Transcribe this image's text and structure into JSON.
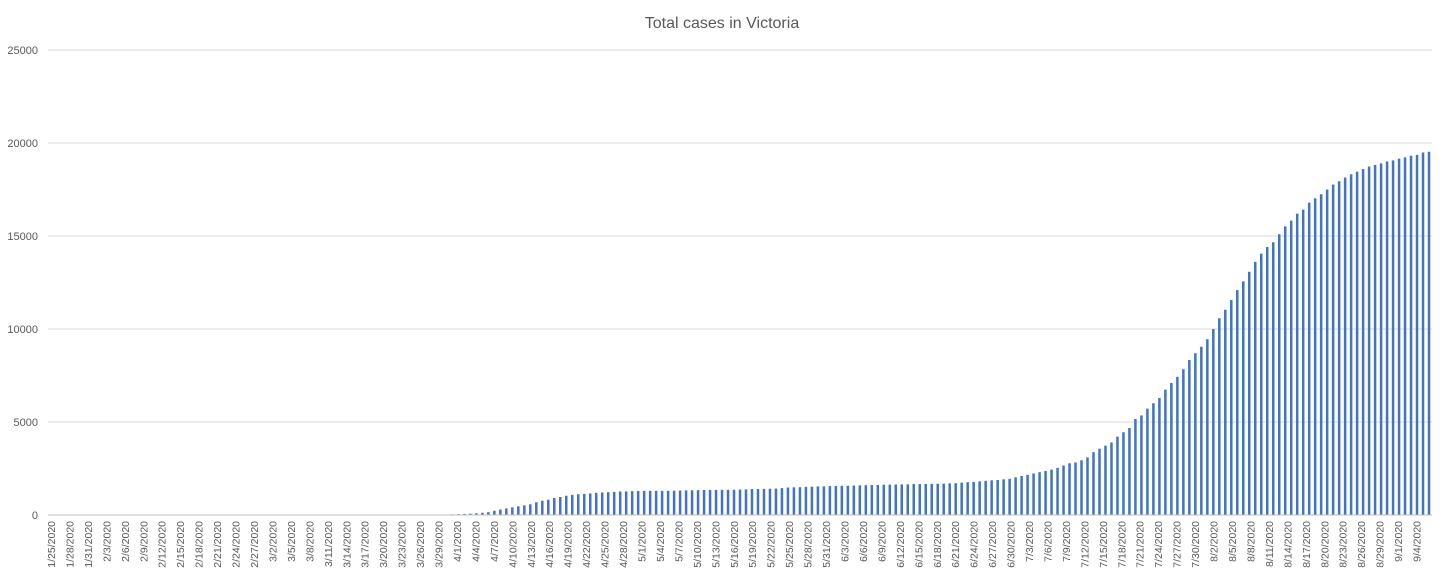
{
  "chart_data": {
    "type": "bar",
    "title": "Total cases in Victoria",
    "xlabel": "",
    "ylabel": "",
    "ylim": [
      0,
      25000
    ],
    "y_ticks": [
      0,
      5000,
      10000,
      15000,
      20000,
      25000
    ],
    "grid": true,
    "legend": "none",
    "bar_color": "#4472c4",
    "x_tick_labels": [
      "1/25/2020",
      "1/28/2020",
      "1/31/2020",
      "2/3/2020",
      "2/6/2020",
      "2/9/2020",
      "2/12/2020",
      "2/15/2020",
      "2/18/2020",
      "2/21/2020",
      "2/24/2020",
      "2/27/2020",
      "3/2/2020",
      "3/5/2020",
      "3/8/2020",
      "3/11/2020",
      "3/14/2020",
      "3/17/2020",
      "3/20/2020",
      "3/23/2020",
      "3/26/2020",
      "3/29/2020",
      "4/1/2020",
      "4/4/2020",
      "4/7/2020",
      "4/10/2020",
      "4/13/2020",
      "4/16/2020",
      "4/19/2020",
      "4/22/2020",
      "4/25/2020",
      "4/28/2020",
      "5/1/2020",
      "5/4/2020",
      "5/7/2020",
      "5/10/2020",
      "5/13/2020",
      "5/16/2020",
      "5/19/2020",
      "5/22/2020",
      "5/25/2020",
      "5/28/2020",
      "5/31/2020",
      "6/3/2020",
      "6/6/2020",
      "6/9/2020",
      "6/12/2020",
      "6/15/2020",
      "6/18/2020",
      "6/21/2020",
      "6/24/2020",
      "6/27/2020",
      "6/30/2020",
      "7/3/2020",
      "7/6/2020",
      "7/9/2020",
      "7/12/2020",
      "7/15/2020",
      "7/18/2020",
      "7/21/2020",
      "7/24/2020",
      "7/27/2020",
      "7/30/2020",
      "8/2/2020",
      "8/5/2020",
      "8/8/2020",
      "8/11/2020",
      "8/14/2020",
      "8/17/2020",
      "8/20/2020",
      "8/23/2020",
      "8/26/2020",
      "8/29/2020",
      "9/1/2020",
      "9/4/2020"
    ],
    "values": [
      1,
      1,
      1,
      1,
      1,
      1,
      1,
      1,
      1,
      2,
      3,
      3,
      4,
      4,
      4,
      4,
      4,
      4,
      4,
      4,
      4,
      4,
      4,
      4,
      4,
      4,
      4,
      4,
      4,
      4,
      4,
      4,
      4,
      4,
      4,
      4,
      4,
      4,
      4,
      4,
      4,
      4,
      4,
      4,
      4,
      4,
      4,
      4,
      4,
      4,
      4,
      4,
      4,
      4,
      4,
      4,
      7,
      9,
      9,
      10,
      11,
      11,
      11,
      11,
      15,
      18,
      21,
      36,
      49,
      57,
      71,
      94,
      121,
      154,
      229,
      296,
      355,
      411,
      466,
      520,
      574,
      685,
      769,
      821,
      917,
      968,
      1036,
      1085,
      1115,
      1135,
      1158,
      1191,
      1212,
      1228,
      1241,
      1265,
      1268,
      1281,
      1291,
      1299,
      1301,
      1302,
      1299,
      1301,
      1305,
      1316,
      1325,
      1329,
      1337,
      1346,
      1349,
      1350,
      1354,
      1355,
      1360,
      1368,
      1378,
      1395,
      1398,
      1405,
      1412,
      1421,
      1445,
      1477,
      1487,
      1494,
      1513,
      1521,
      1535,
      1540,
      1553,
      1561,
      1567,
      1572,
      1581,
      1592,
      1601,
      1608,
      1615,
      1628,
      1634,
      1641,
      1645,
      1650,
      1661,
      1663,
      1671,
      1675,
      1681,
      1687,
      1703,
      1711,
      1740,
      1762,
      1779,
      1810,
      1836,
      1864,
      1884,
      1917,
      1947,
      2028,
      2099,
      2159,
      2231,
      2303,
      2368,
      2441,
      2536,
      2660,
      2782,
      2824,
      2942,
      3098,
      3379,
      3560,
      3728,
      3901,
      4213,
      4448,
      4677,
      5165,
      5353,
      5717,
      6007,
      6289,
      6739,
      7098,
      7430,
      7840,
      8335,
      8696,
      9046,
      9450,
      9998,
      10577,
      11034,
      11557,
      12089,
      12563,
      13077,
      13610,
      14050,
      14409,
      14659,
      15094,
      15519,
      15827,
      16200,
      16420,
      16795,
      17027,
      17242,
      17500,
      17763,
      17944,
      18143,
      18318,
      18459,
      18598,
      18735,
      18822,
      18904,
      19006,
      19063,
      19157,
      19228,
      19316,
      19362,
      19488,
      19530
    ],
    "bar_positions_note_removed": ""
  }
}
